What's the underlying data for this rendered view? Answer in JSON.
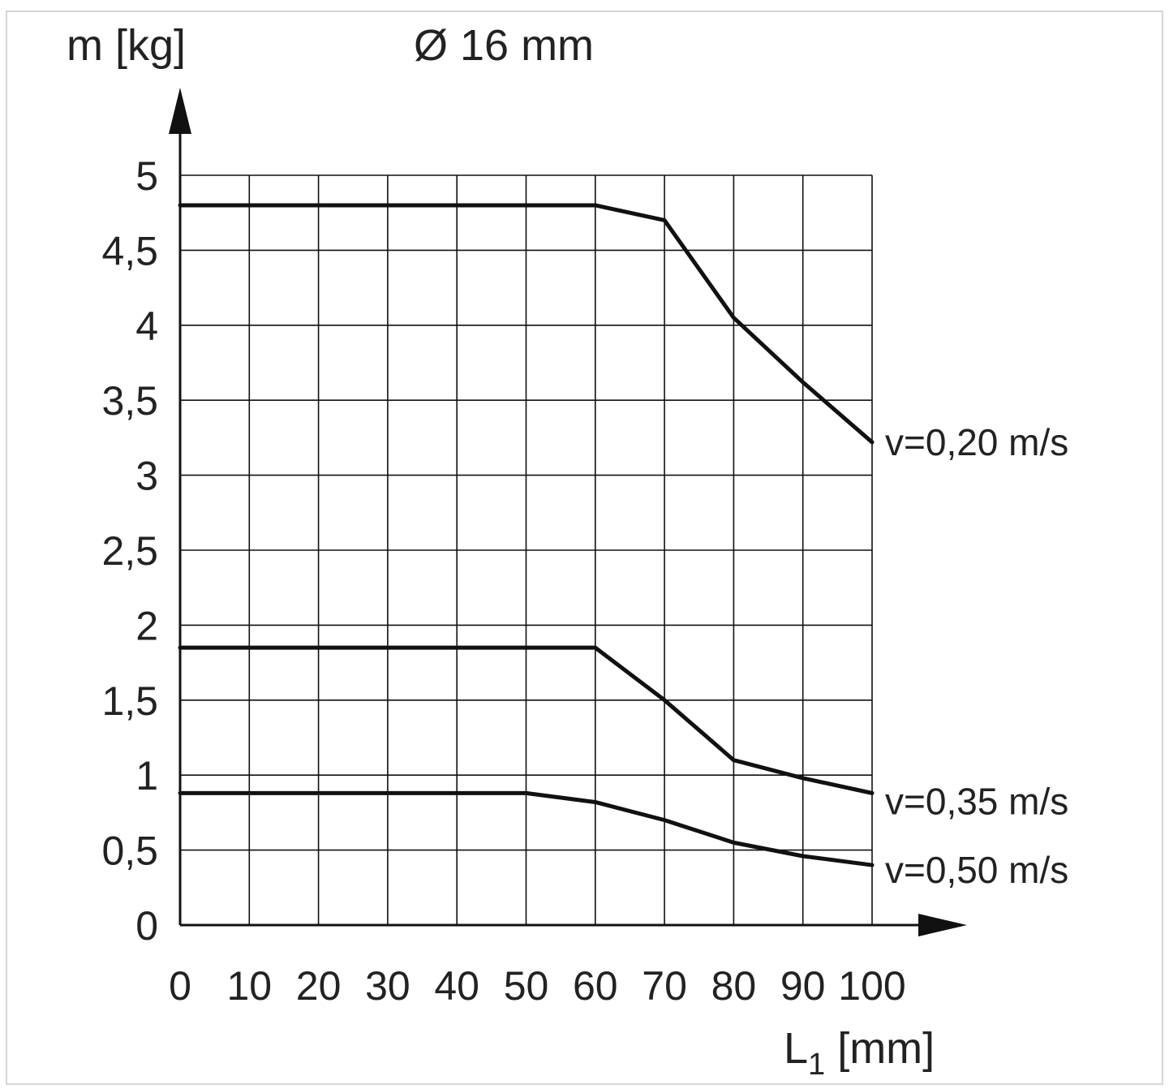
{
  "chart_data": {
    "type": "line",
    "title": "Ø 16 mm",
    "ylabel": "m [kg]",
    "xlabel_main": "L",
    "xlabel_sub": "1",
    "xlabel_unit": " [mm]",
    "xlim": [
      0,
      100
    ],
    "ylim": [
      0,
      5
    ],
    "x_ticks": [
      "0",
      "10",
      "20",
      "30",
      "40",
      "50",
      "60",
      "70",
      "80",
      "90",
      "100"
    ],
    "y_ticks": [
      "0",
      "0,5",
      "1",
      "1,5",
      "2",
      "2,5",
      "3",
      "3,5",
      "4",
      "4,5",
      "5"
    ],
    "grid": true,
    "series": [
      {
        "name": "v=0,20 m/s",
        "x": [
          0,
          10,
          20,
          30,
          40,
          50,
          60,
          70,
          80,
          90,
          100
        ],
        "y": [
          4.8,
          4.8,
          4.8,
          4.8,
          4.8,
          4.8,
          4.8,
          4.7,
          4.05,
          3.62,
          3.22
        ]
      },
      {
        "name": "v=0,35 m/s",
        "x": [
          0,
          10,
          20,
          30,
          40,
          50,
          60,
          70,
          80,
          90,
          100
        ],
        "y": [
          1.85,
          1.85,
          1.85,
          1.85,
          1.85,
          1.85,
          1.85,
          1.5,
          1.1,
          0.98,
          0.88
        ]
      },
      {
        "name": "v=0,50 m/s",
        "x": [
          0,
          10,
          20,
          30,
          40,
          50,
          60,
          70,
          80,
          90,
          100
        ],
        "y": [
          0.88,
          0.88,
          0.88,
          0.88,
          0.88,
          0.88,
          0.82,
          0.7,
          0.55,
          0.46,
          0.4
        ]
      }
    ]
  }
}
